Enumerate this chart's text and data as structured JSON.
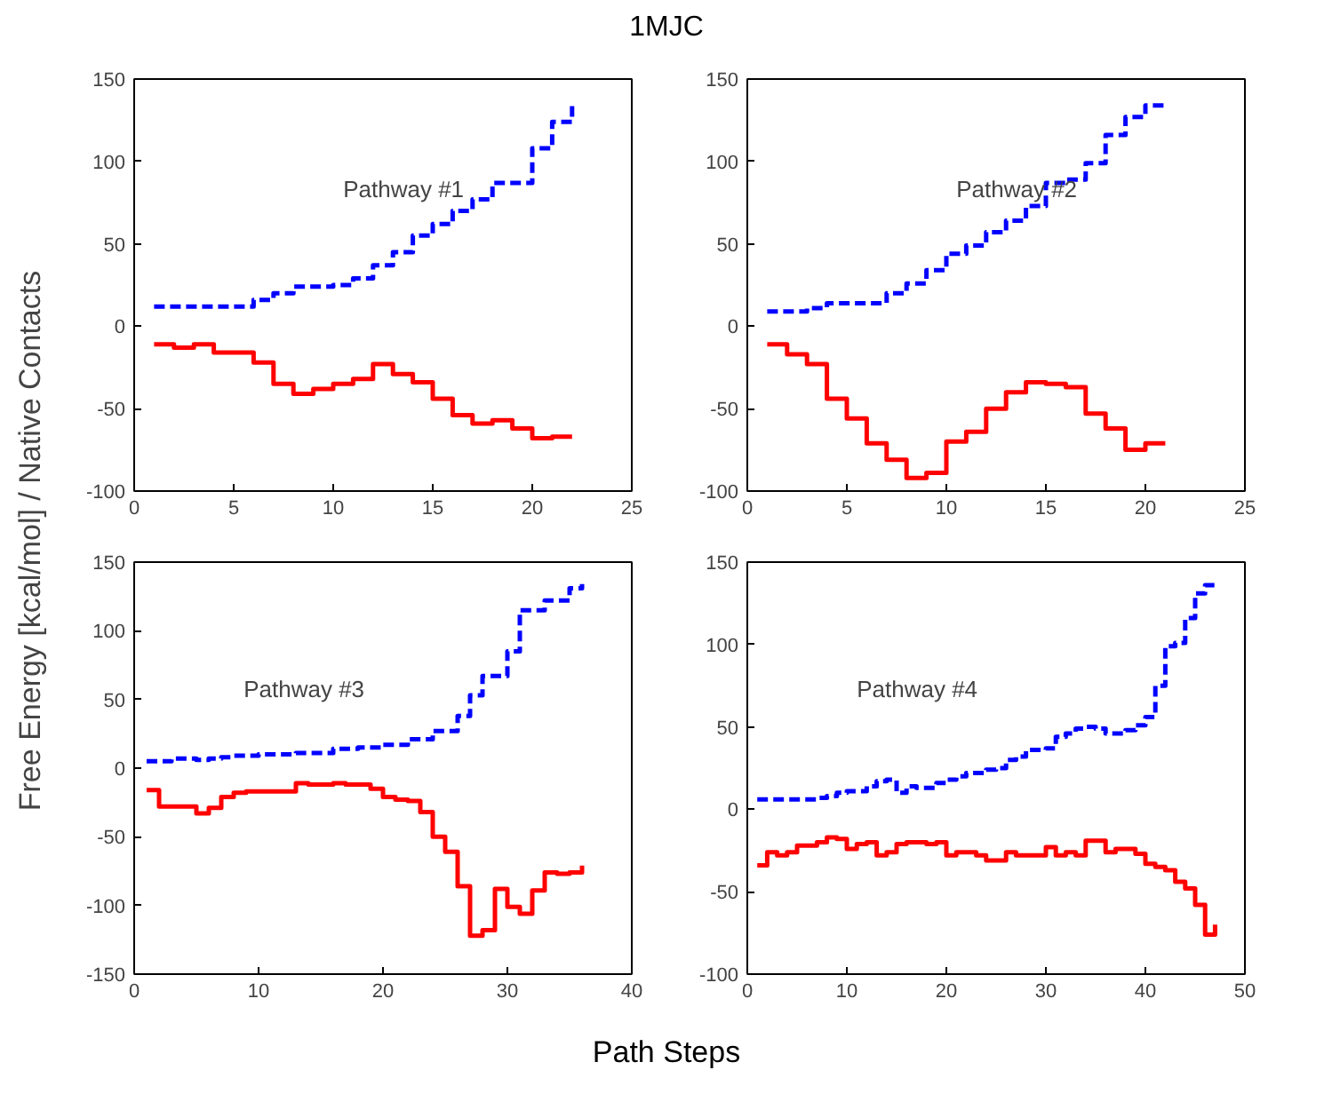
{
  "chart_data": [
    {
      "type": "step",
      "title": "1MJC",
      "xlabel": "Path Steps",
      "ylabel": "Free Energy [kcal/mol] / Native Contacts",
      "annotations": [
        "Pathway #1"
      ],
      "xlim": [
        0,
        25
      ],
      "ylim": [
        -100,
        150
      ],
      "xticks": [
        0,
        5,
        10,
        15,
        20,
        25
      ],
      "yticks": [
        -100,
        -50,
        0,
        50,
        100,
        150
      ],
      "grid": false,
      "series": [
        {
          "color": "#0000ff",
          "line_style": "dashed",
          "x": [
            1,
            2,
            3,
            4,
            5,
            6,
            7,
            8,
            9,
            10,
            11,
            12,
            13,
            14,
            15,
            16,
            17,
            18,
            19,
            20,
            21,
            22
          ],
          "values": [
            12,
            12,
            12,
            12,
            12,
            16,
            20,
            24,
            24,
            25,
            29,
            37,
            45,
            55,
            62,
            70,
            77,
            87,
            87,
            108,
            124,
            135
          ]
        },
        {
          "color": "#ff0000",
          "line_style": "solid",
          "x": [
            1,
            2,
            3,
            4,
            5,
            6,
            7,
            8,
            9,
            10,
            11,
            12,
            13,
            14,
            15,
            16,
            17,
            18,
            19,
            20,
            21,
            22
          ],
          "values": [
            -11,
            -13,
            -11,
            -16,
            -16,
            -22,
            -35,
            -41,
            -38,
            -35,
            -32,
            -23,
            -29,
            -34,
            -44,
            -54,
            -59,
            -57,
            -62,
            -68,
            -67,
            -67
          ]
        }
      ]
    },
    {
      "type": "step",
      "annotations": [
        "Pathway #2"
      ],
      "xlim": [
        0,
        25
      ],
      "ylim": [
        -100,
        150
      ],
      "xticks": [
        0,
        5,
        10,
        15,
        20,
        25
      ],
      "yticks": [
        -100,
        -50,
        0,
        50,
        100,
        150
      ],
      "grid": false,
      "series": [
        {
          "color": "#0000ff",
          "line_style": "dashed",
          "x": [
            1,
            2,
            3,
            4,
            5,
            6,
            7,
            8,
            9,
            10,
            11,
            12,
            13,
            14,
            15,
            16,
            17,
            18,
            19,
            20,
            21
          ],
          "values": [
            9,
            9,
            11,
            14,
            14,
            14,
            20,
            26,
            34,
            44,
            49,
            57,
            64,
            73,
            87,
            89,
            99,
            116,
            127,
            134,
            134
          ]
        },
        {
          "color": "#ff0000",
          "line_style": "solid",
          "x": [
            1,
            2,
            3,
            4,
            5,
            6,
            7,
            8,
            9,
            10,
            11,
            12,
            13,
            14,
            15,
            16,
            17,
            18,
            19,
            20,
            21
          ],
          "values": [
            -11,
            -17,
            -23,
            -44,
            -56,
            -71,
            -81,
            -92,
            -89,
            -70,
            -64,
            -50,
            -40,
            -34,
            -35,
            -37,
            -53,
            -62,
            -75,
            -71,
            -71
          ]
        }
      ]
    },
    {
      "type": "step",
      "annotations": [
        "Pathway #3"
      ],
      "xlim": [
        0,
        40
      ],
      "ylim": [
        -150,
        150
      ],
      "xticks": [
        0,
        10,
        20,
        30,
        40
      ],
      "yticks": [
        -150,
        -100,
        -50,
        0,
        50,
        100,
        150
      ],
      "grid": false,
      "series": [
        {
          "color": "#0000ff",
          "line_style": "dashed",
          "x": [
            1,
            2,
            3,
            4,
            5,
            6,
            7,
            8,
            9,
            10,
            11,
            12,
            13,
            14,
            15,
            16,
            17,
            18,
            19,
            20,
            21,
            22,
            23,
            24,
            25,
            26,
            27,
            28,
            29,
            30,
            31,
            32,
            33,
            34,
            35,
            36
          ],
          "values": [
            5,
            5,
            7,
            7,
            6,
            7,
            8,
            9,
            9,
            10,
            10,
            10,
            11,
            11,
            11,
            14,
            14,
            15,
            15,
            17,
            17,
            21,
            21,
            27,
            27,
            38,
            53,
            67,
            67,
            85,
            115,
            115,
            122,
            122,
            131,
            134
          ]
        },
        {
          "color": "#ff0000",
          "line_style": "solid",
          "x": [
            1,
            2,
            3,
            4,
            5,
            6,
            7,
            8,
            9,
            10,
            11,
            12,
            13,
            14,
            15,
            16,
            17,
            18,
            19,
            20,
            21,
            22,
            23,
            24,
            25,
            26,
            27,
            28,
            29,
            30,
            31,
            32,
            33,
            34,
            35,
            36
          ],
          "values": [
            -16,
            -28,
            -28,
            -28,
            -33,
            -29,
            -21,
            -18,
            -17,
            -17,
            -17,
            -17,
            -11,
            -12,
            -12,
            -11,
            -12,
            -12,
            -15,
            -21,
            -23,
            -24,
            -32,
            -50,
            -61,
            -86,
            -122,
            -118,
            -88,
            -101,
            -106,
            -89,
            -76,
            -77,
            -76,
            -71
          ]
        }
      ]
    },
    {
      "type": "step",
      "annotations": [
        "Pathway #4"
      ],
      "xlim": [
        0,
        50
      ],
      "ylim": [
        -100,
        150
      ],
      "xticks": [
        0,
        10,
        20,
        30,
        40,
        50
      ],
      "yticks": [
        -100,
        -50,
        0,
        50,
        100,
        150
      ],
      "grid": false,
      "series": [
        {
          "color": "#0000ff",
          "line_style": "dashed",
          "x": [
            1,
            2,
            3,
            4,
            5,
            6,
            7,
            8,
            9,
            10,
            11,
            12,
            13,
            14,
            15,
            16,
            17,
            18,
            19,
            20,
            21,
            22,
            23,
            24,
            25,
            26,
            27,
            28,
            29,
            30,
            31,
            32,
            33,
            34,
            35,
            36,
            37,
            38,
            39,
            40,
            41,
            42,
            43,
            44,
            45,
            46,
            47
          ],
          "values": [
            6,
            6,
            6,
            6,
            6,
            6,
            7,
            8,
            10,
            11,
            11,
            14,
            17,
            18,
            10,
            14,
            13,
            13,
            16,
            18,
            20,
            22,
            22,
            24,
            25,
            30,
            32,
            36,
            36,
            37,
            44,
            46,
            49,
            50,
            49,
            46,
            46,
            48,
            51,
            56,
            75,
            99,
            101,
            116,
            131,
            136,
            136
          ]
        },
        {
          "color": "#ff0000",
          "line_style": "solid",
          "x": [
            1,
            2,
            3,
            4,
            5,
            6,
            7,
            8,
            9,
            10,
            11,
            12,
            13,
            14,
            15,
            16,
            17,
            18,
            19,
            20,
            21,
            22,
            23,
            24,
            25,
            26,
            27,
            28,
            29,
            30,
            31,
            32,
            33,
            34,
            35,
            36,
            37,
            38,
            39,
            40,
            41,
            42,
            43,
            44,
            45,
            46,
            47
          ],
          "values": [
            -34,
            -26,
            -28,
            -26,
            -22,
            -22,
            -20,
            -17,
            -18,
            -24,
            -21,
            -20,
            -28,
            -26,
            -21,
            -20,
            -20,
            -21,
            -20,
            -28,
            -26,
            -26,
            -28,
            -31,
            -31,
            -26,
            -28,
            -28,
            -28,
            -23,
            -28,
            -26,
            -28,
            -19,
            -19,
            -26,
            -24,
            -24,
            -27,
            -33,
            -35,
            -37,
            -44,
            -48,
            -58,
            -76,
            -70
          ]
        }
      ]
    }
  ]
}
